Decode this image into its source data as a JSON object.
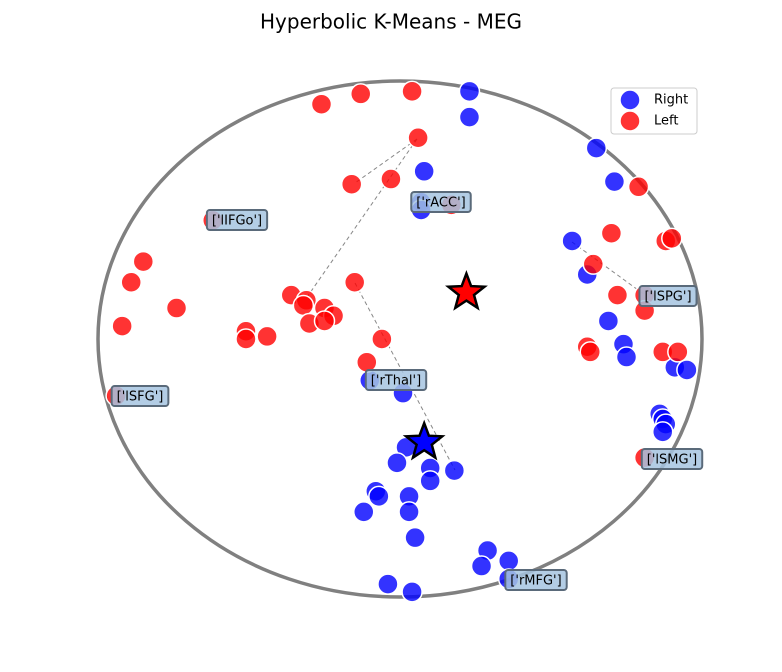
{
  "chart_data": {
    "type": "scatter",
    "title": "Hyperbolic K-Means - MEG",
    "xlim": [
      -1,
      1
    ],
    "ylim": [
      -1,
      1
    ],
    "legend": "upper right",
    "series": [
      {
        "name": "Right",
        "color": "#0000ff",
        "x": [
          0.23,
          0.23,
          0.08,
          0.65,
          0.71,
          0.07,
          0.07,
          0.57,
          0.62,
          0.69,
          0.74,
          0.75,
          0.91,
          0.95,
          -0.1,
          0.01,
          0.86,
          0.87,
          0.88,
          0.87,
          0.02,
          -0.01,
          0.1,
          0.1,
          0.18,
          -0.08,
          -0.07,
          0.03,
          -0.12,
          0.03,
          0.05,
          0.29,
          0.27,
          0.36,
          0.36,
          -0.04,
          0.04
        ],
        "values": [
          0.96,
          0.86,
          0.65,
          0.74,
          0.61,
          0.53,
          0.5,
          0.38,
          0.25,
          0.07,
          -0.02,
          -0.07,
          -0.11,
          -0.12,
          -0.16,
          -0.21,
          -0.29,
          -0.31,
          -0.33,
          -0.36,
          -0.42,
          -0.48,
          -0.5,
          -0.55,
          -0.51,
          -0.59,
          -0.61,
          -0.61,
          -0.67,
          -0.67,
          -0.77,
          -0.82,
          -0.88,
          -0.86,
          -0.93,
          -0.95,
          -0.98
        ]
      },
      {
        "name": "Left",
        "color": "#ff0000",
        "x": [
          -0.26,
          -0.13,
          0.04,
          0.06,
          -0.16,
          -0.03,
          0.17,
          -0.62,
          -0.85,
          -0.89,
          -0.92,
          -0.74,
          -0.51,
          -0.51,
          -0.44,
          -0.36,
          -0.31,
          -0.32,
          -0.3,
          -0.25,
          -0.22,
          -0.25,
          -0.15,
          -0.06,
          -0.11,
          -0.94,
          0.7,
          0.88,
          0.9,
          0.64,
          0.72,
          0.81,
          0.81,
          0.62,
          0.63,
          0.87,
          0.92,
          0.81,
          0.79
        ],
        "values": [
          0.91,
          0.95,
          0.96,
          0.78,
          0.6,
          0.62,
          0.52,
          0.46,
          0.3,
          0.22,
          0.05,
          0.12,
          0.03,
          0.0,
          0.01,
          0.17,
          0.15,
          0.13,
          0.06,
          0.12,
          0.09,
          0.07,
          0.22,
          0.0,
          -0.09,
          -0.22,
          0.41,
          0.38,
          0.39,
          0.29,
          0.17,
          0.17,
          0.11,
          -0.03,
          -0.05,
          -0.05,
          -0.05,
          -0.46,
          0.59
        ]
      }
    ],
    "centroids": [
      {
        "color": "#ff0000",
        "x": 0.22,
        "y": 0.18
      },
      {
        "color": "#0000ff",
        "x": 0.08,
        "y": -0.4
      }
    ],
    "annotations": [
      "['rACC']",
      "['lIFGo']",
      "['lSPG']",
      "['rThal']",
      "['lSFG']",
      "['lSMG']",
      "['rMFG']"
    ]
  }
}
